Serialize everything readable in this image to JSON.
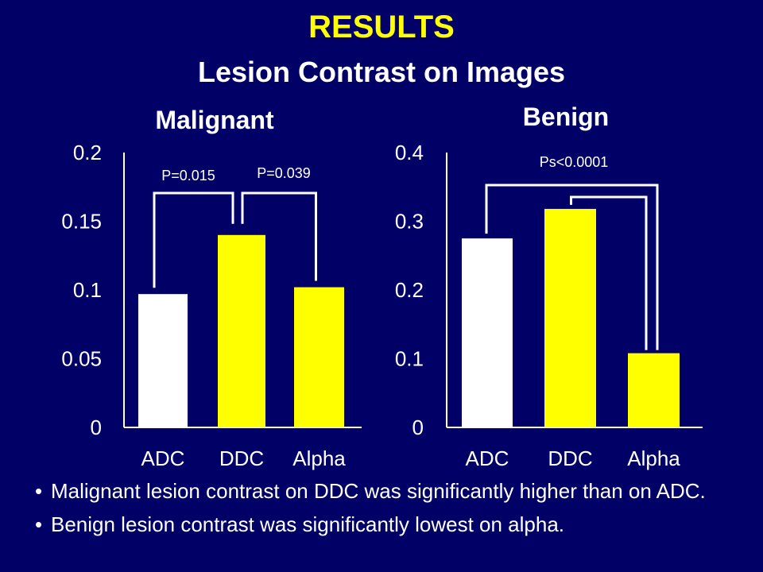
{
  "slide": {
    "title": "RESULTS",
    "subtitle": "Lesion Contrast on Images",
    "bullets": [
      "Malignant lesion contrast on DDC was significantly higher than on ADC.",
      "Benign lesion contrast was significantly lowest on alpha."
    ]
  },
  "colors": {
    "background": "#000066",
    "title": "#ffff00",
    "text": "#ffffff",
    "bar_adc": "#ffffff",
    "bar_ddc": "#ffff00",
    "bar_alpha": "#ffff00"
  },
  "chart_data": [
    {
      "type": "bar",
      "title": "Malignant",
      "categories": [
        "ADC",
        "DDC",
        "Alpha"
      ],
      "values": [
        0.097,
        0.14,
        0.102
      ],
      "ylim": [
        0,
        0.2
      ],
      "yticks": [
        "0",
        "0.05",
        "0.1",
        "0.15",
        "0.2"
      ],
      "annotations": [
        "P=0.015",
        "P=0.039"
      ]
    },
    {
      "type": "bar",
      "title": "Benign",
      "categories": [
        "ADC",
        "DDC",
        "Alpha"
      ],
      "values": [
        0.275,
        0.318,
        0.108
      ],
      "ylim": [
        0,
        0.4
      ],
      "yticks": [
        "0",
        "0.1",
        "0.2",
        "0.3",
        "0.4"
      ],
      "annotations": [
        "Ps<0.0001"
      ]
    }
  ]
}
